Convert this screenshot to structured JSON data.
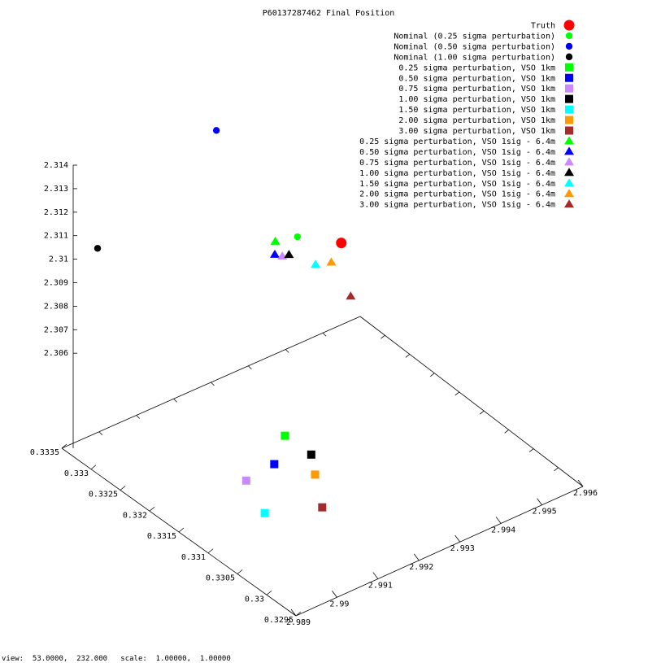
{
  "chart_data": {
    "type": "scatter",
    "title": "P60137287462 Final Position",
    "view": "3d",
    "xlabel": "",
    "ylabel": "",
    "zlabel": "",
    "x_ticks": [
      "2.989",
      "2.99",
      "2.991",
      "2.992",
      "2.993",
      "2.994",
      "2.995",
      "2.996"
    ],
    "y_ticks": [
      "0.3295",
      "0.33",
      "0.3305",
      "0.331",
      "0.3315",
      "0.332",
      "0.3325",
      "0.333",
      "0.3335"
    ],
    "z_ticks": [
      "2.306",
      "2.307",
      "2.308",
      "2.309",
      "2.31",
      "2.311",
      "2.312",
      "2.313",
      "2.314"
    ],
    "z_range": [
      2.3055,
      2.314
    ],
    "grid": false,
    "legend_position": "top-right",
    "series": [
      {
        "name": "Truth",
        "marker": "circle-large",
        "color": "#ff0000",
        "points": [
          {
            "x": 2.99535,
            "y": 0.33335,
            "z": 2.3094
          }
        ]
      },
      {
        "name": "Nominal (0.25 sigma perturbation)",
        "marker": "circle",
        "color": "#00ff00",
        "points": [
          {
            "x": 2.99417,
            "y": 0.33324,
            "z": 2.3108
          }
        ]
      },
      {
        "name": "Nominal (0.50 sigma perturbation)",
        "marker": "circle",
        "color": "#0000ff",
        "points": [
          {
            "x": 2.99319,
            "y": 0.33391,
            "z": 2.3149
          }
        ]
      },
      {
        "name": "Nominal (1.00 sigma perturbation)",
        "marker": "circle",
        "color": "#000000",
        "points": [
          {
            "x": 2.98745,
            "y": 0.33176,
            "z": 2.3183
          }
        ]
      },
      {
        "name": "0.25 sigma perturbation, VSO 1km",
        "marker": "square",
        "color": "#00ff00",
        "points": [
          {
            "x": 2.99249,
            "y": 0.33223,
            "z": 2.3055
          }
        ]
      },
      {
        "name": "0.50 sigma perturbation, VSO 1km",
        "marker": "square",
        "color": "#0000ff",
        "points": [
          {
            "x": 2.99176,
            "y": 0.33188,
            "z": 2.3055
          }
        ]
      },
      {
        "name": "0.75 sigma perturbation, VSO 1km",
        "marker": "square",
        "color": "#cc88ff",
        "points": [
          {
            "x": 2.99102,
            "y": 0.33182,
            "z": 2.3055
          }
        ]
      },
      {
        "name": "1.00 sigma perturbation, VSO 1km",
        "marker": "square",
        "color": "#000000",
        "points": [
          {
            "x": 2.99249,
            "y": 0.33178,
            "z": 2.3055
          }
        ]
      },
      {
        "name": "1.50 sigma perturbation, VSO 1km",
        "marker": "square",
        "color": "#00ffff",
        "points": [
          {
            "x": 2.99063,
            "y": 0.33122,
            "z": 2.3055
          }
        ]
      },
      {
        "name": "2.00 sigma perturbation, VSO 1km",
        "marker": "square",
        "color": "#ff9900",
        "points": [
          {
            "x": 2.99214,
            "y": 0.33146,
            "z": 2.3055
          }
        ]
      },
      {
        "name": "3.00 sigma perturbation, VSO 1km",
        "marker": "square",
        "color": "#a52a2a",
        "points": [
          {
            "x": 2.99158,
            "y": 0.33093,
            "z": 2.3055
          }
        ]
      },
      {
        "name": "0.25 sigma perturbation, VSO 1sig - 6.4m",
        "marker": "triangle",
        "color": "#00ff00",
        "points": [
          {
            "x": 2.99361,
            "y": 0.33321,
            "z": 2.3111
          }
        ]
      },
      {
        "name": "0.50 sigma perturbation, VSO 1sig - 6.4m",
        "marker": "triangle",
        "color": "#0000ff",
        "points": [
          {
            "x": 2.99353,
            "y": 0.33316,
            "z": 2.3107
          }
        ]
      },
      {
        "name": "0.75 sigma perturbation, VSO 1sig - 6.4m",
        "marker": "triangle",
        "color": "#cc88ff",
        "points": [
          {
            "x": 2.99365,
            "y": 0.33312,
            "z": 2.3106
          }
        ]
      },
      {
        "name": "1.00 sigma perturbation, VSO 1sig - 6.4m",
        "marker": "triangle",
        "color": "#000000",
        "points": [
          {
            "x": 2.99378,
            "y": 0.3331,
            "z": 2.3106
          }
        ]
      },
      {
        "name": "1.50 sigma perturbation, VSO 1sig - 6.4m",
        "marker": "triangle",
        "color": "#00ffff",
        "points": [
          {
            "x": 2.99406,
            "y": 0.33285,
            "z": 2.3104
          }
        ]
      },
      {
        "name": "2.00 sigma perturbation, VSO 1sig - 6.4m",
        "marker": "triangle",
        "color": "#ff9900",
        "points": [
          {
            "x": 2.99443,
            "y": 0.33285,
            "z": 2.3102
          }
        ]
      },
      {
        "name": "3.00 sigma perturbation, VSO 1sig - 6.4m",
        "marker": "triangle",
        "color": "#a52a2a",
        "points": [
          {
            "x": 2.9945,
            "y": 0.33257,
            "z": 2.3092
          }
        ]
      }
    ]
  },
  "status": {
    "text": "view:  53.0000,  232.000   scale:  1.00000,  1.00000"
  }
}
